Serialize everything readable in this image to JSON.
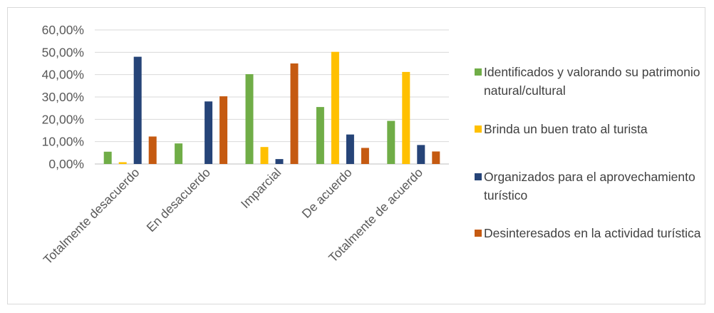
{
  "chart_data": {
    "type": "bar",
    "categories": [
      "Totalmente desacuerdo",
      "En desacuerdo",
      "Imparcial",
      "De acuerdo",
      "Totalmente de acuerdo"
    ],
    "series": [
      {
        "name": "Identificados y valorando su patrimonio natural/cultural",
        "color": "#70ad47",
        "values": [
          5.5,
          9.2,
          40.2,
          25.5,
          19.3
        ]
      },
      {
        "name": "Brinda un buen trato al turista",
        "color": "#ffc000",
        "values": [
          0.8,
          0.0,
          7.6,
          50.2,
          41.2
        ]
      },
      {
        "name": "Organizados para el aprovechamiento turístico",
        "color": "#264478",
        "values": [
          48.0,
          28.0,
          2.2,
          13.2,
          8.5
        ]
      },
      {
        "name": "Desinteresados en la actividad turística",
        "color": "#c55a11",
        "values": [
          12.3,
          30.3,
          45.0,
          7.2,
          5.6
        ]
      }
    ],
    "ylim": [
      0,
      60
    ],
    "yticks": [
      "0,00%",
      "10,00%",
      "20,00%",
      "30,00%",
      "40,00%",
      "50,00%",
      "60,00%"
    ],
    "grid": true,
    "legend_position": "right"
  }
}
